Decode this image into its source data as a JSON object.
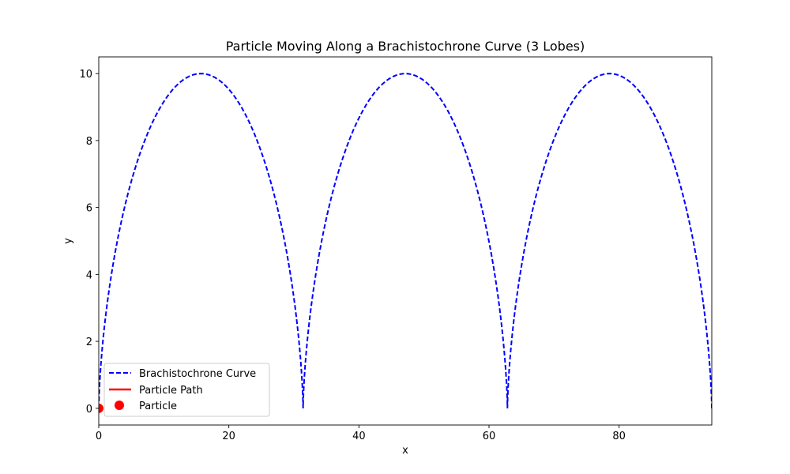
{
  "chart_data": {
    "type": "line",
    "title": "Particle Moving Along a Brachistochrone Curve (3 Lobes)",
    "xlabel": "x",
    "ylabel": "y",
    "xlim": [
      0,
      94.25
    ],
    "ylim": [
      -0.5,
      10.5
    ],
    "xticks": [
      0,
      20,
      40,
      60,
      80
    ],
    "yticks": [
      0,
      2,
      4,
      6,
      8,
      10
    ],
    "grid": false,
    "legend_placement": "lower-left",
    "series": [
      {
        "name": "Brachistochrone Curve",
        "kind": "curve",
        "style": "dashed",
        "color": "#0000ff",
        "cycloid_radius": 5,
        "lobes": 3
      },
      {
        "name": "Particle Path",
        "kind": "path",
        "style": "solid",
        "color": "#ff0000",
        "x": [
          0
        ],
        "y": [
          0
        ]
      },
      {
        "name": "Particle",
        "kind": "point",
        "color": "#ff0000",
        "x": [
          0
        ],
        "y": [
          0
        ]
      }
    ]
  }
}
